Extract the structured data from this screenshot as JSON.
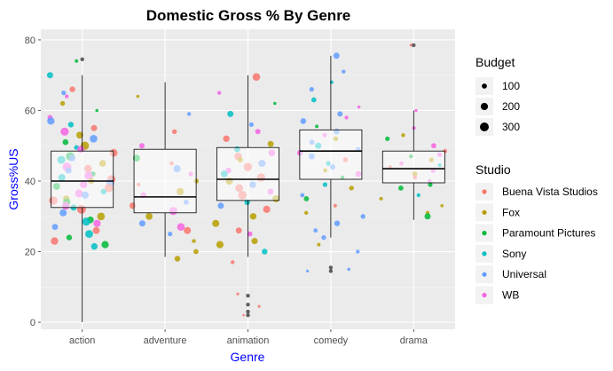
{
  "chart_data": {
    "type": "boxplot-jitter",
    "title": "Domestic Gross %  By Genre",
    "xlabel": "Genre",
    "ylabel": "Gross%US",
    "ylim": [
      -2,
      83
    ],
    "yticks": [
      0,
      20,
      40,
      60,
      80
    ],
    "categories": [
      "action",
      "adventure",
      "animation",
      "comedy",
      "drama"
    ],
    "boxes": [
      {
        "genre": "action",
        "q1": 32.5,
        "median": 40,
        "q3": 48.5,
        "lower": 0,
        "upper": 70
      },
      {
        "genre": "adventure",
        "q1": 31,
        "median": 35.5,
        "q3": 49,
        "lower": 18.5,
        "upper": 68
      },
      {
        "genre": "animation",
        "q1": 34.5,
        "median": 40.5,
        "q3": 49.5,
        "lower": 18.5,
        "upper": 70
      },
      {
        "genre": "comedy",
        "q1": 40.5,
        "median": 48.5,
        "q3": 54.5,
        "lower": 24,
        "upper": 75.5
      },
      {
        "genre": "drama",
        "q1": 39.5,
        "median": 43.5,
        "q3": 48.5,
        "lower": 29,
        "upper": 60
      }
    ],
    "outliers": [
      {
        "genre": "animation",
        "y": 7.5
      },
      {
        "genre": "animation",
        "y": 5
      },
      {
        "genre": "animation",
        "y": 3
      },
      {
        "genre": "animation",
        "y": 2
      },
      {
        "genre": "comedy",
        "y": 15.5
      },
      {
        "genre": "comedy",
        "y": 14.5
      },
      {
        "genre": "drama",
        "y": 78.5
      },
      {
        "genre": "action",
        "y": 74.5
      }
    ],
    "points_by_genre": {
      "action": [
        {
          "y": 74,
          "s": "Paramount Pictures",
          "b": 50
        },
        {
          "y": 70,
          "s": "Sony",
          "b": 150
        },
        {
          "y": 66,
          "s": "Buena Vista Studios",
          "b": 120
        },
        {
          "y": 65,
          "s": "Universal",
          "b": 80
        },
        {
          "y": 64,
          "s": "WB",
          "b": 60
        },
        {
          "y": 62,
          "s": "Fox",
          "b": 90
        },
        {
          "y": 60,
          "s": "Paramount Pictures",
          "b": 40
        },
        {
          "y": 58,
          "s": "WB",
          "b": 100
        },
        {
          "y": 57,
          "s": "Universal",
          "b": 200
        },
        {
          "y": 56,
          "s": "Sony",
          "b": 120
        },
        {
          "y": 55,
          "s": "Buena Vista Studios",
          "b": 150
        },
        {
          "y": 54,
          "s": "WB",
          "b": 250
        },
        {
          "y": 53,
          "s": "Fox",
          "b": 180
        },
        {
          "y": 52,
          "s": "Universal",
          "b": 220
        },
        {
          "y": 51,
          "s": "Paramount Pictures",
          "b": 130
        },
        {
          "y": 50,
          "s": "Fox",
          "b": 260
        },
        {
          "y": 49.5,
          "s": "Sony",
          "b": 90
        },
        {
          "y": 49,
          "s": "WB",
          "b": 200
        },
        {
          "y": 48,
          "s": "Buena Vista Studios",
          "b": 230
        },
        {
          "y": 47,
          "s": "Paramount Pictures",
          "b": 280
        },
        {
          "y": 46.5,
          "s": "Universal",
          "b": 160
        },
        {
          "y": 46,
          "s": "Sony",
          "b": 240
        },
        {
          "y": 45,
          "s": "Fox",
          "b": 170
        },
        {
          "y": 44,
          "s": "WB",
          "b": 290
        },
        {
          "y": 43.5,
          "s": "Buena Vista Studios",
          "b": 210
        },
        {
          "y": 43,
          "s": "Universal",
          "b": 150
        },
        {
          "y": 42,
          "s": "Paramount Pictures",
          "b": 100
        },
        {
          "y": 41.5,
          "s": "WB",
          "b": 270
        },
        {
          "y": 41,
          "s": "Sony",
          "b": 190
        },
        {
          "y": 40.5,
          "s": "Buena Vista Studios",
          "b": 250
        },
        {
          "y": 40,
          "s": "Fox",
          "b": 140
        },
        {
          "y": 39.5,
          "s": "Universal",
          "b": 230
        },
        {
          "y": 39,
          "s": "WB",
          "b": 200
        },
        {
          "y": 38.5,
          "s": "Paramount Pictures",
          "b": 180
        },
        {
          "y": 38,
          "s": "Buena Vista Studios",
          "b": 260
        },
        {
          "y": 37,
          "s": "Sony",
          "b": 120
        },
        {
          "y": 36.5,
          "s": "WB",
          "b": 240
        },
        {
          "y": 36,
          "s": "Universal",
          "b": 200
        },
        {
          "y": 35,
          "s": "Fox",
          "b": 160
        },
        {
          "y": 34.5,
          "s": "Buena Vista Studios",
          "b": 280
        },
        {
          "y": 34,
          "s": "Paramount Pictures",
          "b": 210
        },
        {
          "y": 33,
          "s": "WB",
          "b": 230
        },
        {
          "y": 32.5,
          "s": "Sony",
          "b": 150
        },
        {
          "y": 32,
          "s": "Buena Vista Studios",
          "b": 300
        },
        {
          "y": 31,
          "s": "Universal",
          "b": 190
        },
        {
          "y": 30,
          "s": "Fox",
          "b": 220
        },
        {
          "y": 29,
          "s": "Paramount Pictures",
          "b": 170
        },
        {
          "y": 28.5,
          "s": "Sony",
          "b": 250
        },
        {
          "y": 28,
          "s": "WB",
          "b": 200
        },
        {
          "y": 27,
          "s": "Universal",
          "b": 140
        },
        {
          "y": 26,
          "s": "Buena Vista Studios",
          "b": 180
        },
        {
          "y": 25,
          "s": "Sony",
          "b": 230
        },
        {
          "y": 24,
          "s": "Paramount Pictures",
          "b": 120
        },
        {
          "y": 23,
          "s": "Buena Vista Studios",
          "b": 210
        },
        {
          "y": 22,
          "s": "Paramount Pictures",
          "b": 200
        },
        {
          "y": 21.5,
          "s": "Sony",
          "b": 160
        }
      ],
      "adventure": [
        {
          "y": 64,
          "s": "Fox",
          "b": 40
        },
        {
          "y": 59,
          "s": "Universal",
          "b": 60
        },
        {
          "y": 54,
          "s": "Buena Vista Studios",
          "b": 90
        },
        {
          "y": 50,
          "s": "WB",
          "b": 110
        },
        {
          "y": 46.5,
          "s": "Paramount Pictures",
          "b": 180
        },
        {
          "y": 45,
          "s": "Buena Vista Studios",
          "b": 70
        },
        {
          "y": 43.5,
          "s": "Universal",
          "b": 200
        },
        {
          "y": 42,
          "s": "WB",
          "b": 80
        },
        {
          "y": 40,
          "s": "Fox",
          "b": 90
        },
        {
          "y": 39,
          "s": "Buena Vista Studios",
          "b": 60
        },
        {
          "y": 37,
          "s": "Fox",
          "b": 200
        },
        {
          "y": 36,
          "s": "WB",
          "b": 140
        },
        {
          "y": 34,
          "s": "Universal",
          "b": 100
        },
        {
          "y": 33,
          "s": "Buena Vista Studios",
          "b": 160
        },
        {
          "y": 31.5,
          "s": "WB",
          "b": 250
        },
        {
          "y": 30,
          "s": "Fox",
          "b": 180
        },
        {
          "y": 28,
          "s": "Universal",
          "b": 150
        },
        {
          "y": 27,
          "s": "WB",
          "b": 220
        },
        {
          "y": 26,
          "s": "Buena Vista Studios",
          "b": 190
        },
        {
          "y": 25,
          "s": "Universal",
          "b": 80
        },
        {
          "y": 23,
          "s": "Fox",
          "b": 60
        },
        {
          "y": 20,
          "s": "Fox",
          "b": 100
        },
        {
          "y": 18,
          "s": "Fox",
          "b": 120
        }
      ],
      "animation": [
        {
          "y": 69.5,
          "s": "Buena Vista Studios",
          "b": 220
        },
        {
          "y": 65,
          "s": "WB",
          "b": 60
        },
        {
          "y": 62,
          "s": "Paramount Pictures",
          "b": 40
        },
        {
          "y": 59,
          "s": "Sony",
          "b": 150
        },
        {
          "y": 56,
          "s": "Universal",
          "b": 80
        },
        {
          "y": 54,
          "s": "WB",
          "b": 110
        },
        {
          "y": 52,
          "s": "Buena Vista Studios",
          "b": 160
        },
        {
          "y": 50.5,
          "s": "Fox",
          "b": 140
        },
        {
          "y": 49,
          "s": "Sony",
          "b": 130
        },
        {
          "y": 48,
          "s": "WB",
          "b": 170
        },
        {
          "y": 47,
          "s": "Buena Vista Studios",
          "b": 210
        },
        {
          "y": 46,
          "s": "Fox",
          "b": 100
        },
        {
          "y": 45,
          "s": "Universal",
          "b": 190
        },
        {
          "y": 44,
          "s": "Buena Vista Studios",
          "b": 250
        },
        {
          "y": 43,
          "s": "WB",
          "b": 120
        },
        {
          "y": 42,
          "s": "Sony",
          "b": 180
        },
        {
          "y": 41,
          "s": "Buena Vista Studios",
          "b": 270
        },
        {
          "y": 40,
          "s": "Fox",
          "b": 200
        },
        {
          "y": 39,
          "s": "Universal",
          "b": 160
        },
        {
          "y": 38,
          "s": "Buena Vista Studios",
          "b": 230
        },
        {
          "y": 37,
          "s": "WB",
          "b": 140
        },
        {
          "y": 36,
          "s": "Buena Vista Studios",
          "b": 280
        },
        {
          "y": 35,
          "s": "Fox",
          "b": 180
        },
        {
          "y": 34,
          "s": "Sony",
          "b": 120
        },
        {
          "y": 33,
          "s": "Universal",
          "b": 150
        },
        {
          "y": 32,
          "s": "Buena Vista Studios",
          "b": 200
        },
        {
          "y": 30,
          "s": "Fox",
          "b": 160
        },
        {
          "y": 28,
          "s": "Fox",
          "b": 190
        },
        {
          "y": 26,
          "s": "Buena Vista Studios",
          "b": 140
        },
        {
          "y": 25,
          "s": "WB",
          "b": 100
        },
        {
          "y": 23,
          "s": "Fox",
          "b": 150
        },
        {
          "y": 22,
          "s": "Fox",
          "b": 200
        },
        {
          "y": 20,
          "s": "Sony",
          "b": 120
        },
        {
          "y": 17,
          "s": "Buena Vista Studios",
          "b": 60
        },
        {
          "y": 8,
          "s": "Buena Vista Studios",
          "b": 30
        },
        {
          "y": 4.5,
          "s": "Buena Vista Studios",
          "b": 30
        },
        {
          "y": 2,
          "s": "Buena Vista Studios",
          "b": 20
        }
      ],
      "comedy": [
        {
          "y": 75.5,
          "s": "Universal",
          "b": 150
        },
        {
          "y": 71,
          "s": "Universal",
          "b": 60
        },
        {
          "y": 68,
          "s": "Sony",
          "b": 50
        },
        {
          "y": 66,
          "s": "Universal",
          "b": 80
        },
        {
          "y": 63,
          "s": "Sony",
          "b": 100
        },
        {
          "y": 61,
          "s": "WB",
          "b": 40
        },
        {
          "y": 59,
          "s": "Universal",
          "b": 110
        },
        {
          "y": 58,
          "s": "WB",
          "b": 60
        },
        {
          "y": 57,
          "s": "Universal",
          "b": 130
        },
        {
          "y": 55.5,
          "s": "Paramount Pictures",
          "b": 50
        },
        {
          "y": 54,
          "s": "Universal",
          "b": 120
        },
        {
          "y": 53,
          "s": "WB",
          "b": 70
        },
        {
          "y": 52,
          "s": "Fox",
          "b": 90
        },
        {
          "y": 51,
          "s": "Universal",
          "b": 100
        },
        {
          "y": 50,
          "s": "Sony",
          "b": 150
        },
        {
          "y": 49,
          "s": "Universal",
          "b": 80
        },
        {
          "y": 48,
          "s": "WB",
          "b": 120
        },
        {
          "y": 47,
          "s": "Universal",
          "b": 140
        },
        {
          "y": 46,
          "s": "Buena Vista Studios",
          "b": 100
        },
        {
          "y": 45,
          "s": "Sony",
          "b": 90
        },
        {
          "y": 44,
          "s": "Universal",
          "b": 110
        },
        {
          "y": 43,
          "s": "Fox",
          "b": 70
        },
        {
          "y": 42,
          "s": "WB",
          "b": 130
        },
        {
          "y": 41,
          "s": "Paramount Pictures",
          "b": 60
        },
        {
          "y": 39,
          "s": "Sony",
          "b": 80
        },
        {
          "y": 38,
          "s": "Fox",
          "b": 90
        },
        {
          "y": 36,
          "s": "Universal",
          "b": 70
        },
        {
          "y": 35,
          "s": "Paramount Pictures",
          "b": 100
        },
        {
          "y": 33,
          "s": "Buena Vista Studios",
          "b": 50
        },
        {
          "y": 31,
          "s": "Fox",
          "b": 60
        },
        {
          "y": 30,
          "s": "Universal",
          "b": 90
        },
        {
          "y": 28,
          "s": "Universal",
          "b": 120
        },
        {
          "y": 26,
          "s": "Universal",
          "b": 70
        },
        {
          "y": 24,
          "s": "Universal",
          "b": 80
        },
        {
          "y": 22,
          "s": "Fox",
          "b": 50
        },
        {
          "y": 20,
          "s": "Universal",
          "b": 60
        },
        {
          "y": 15,
          "s": "Universal",
          "b": 40
        },
        {
          "y": 14.5,
          "s": "Universal",
          "b": 30
        }
      ],
      "drama": [
        {
          "y": 78.5,
          "s": "Buena Vista Studios",
          "b": 30
        },
        {
          "y": 60,
          "s": "WB",
          "b": 40
        },
        {
          "y": 55,
          "s": "WB",
          "b": 50
        },
        {
          "y": 53,
          "s": "Fox",
          "b": 60
        },
        {
          "y": 52,
          "s": "Paramount Pictures",
          "b": 80
        },
        {
          "y": 50,
          "s": "WB",
          "b": 100
        },
        {
          "y": 48.5,
          "s": "Buena Vista Studios",
          "b": 70
        },
        {
          "y": 47.5,
          "s": "WB",
          "b": 90
        },
        {
          "y": 47,
          "s": "Paramount Pictures",
          "b": 60
        },
        {
          "y": 46,
          "s": "Fox",
          "b": 80
        },
        {
          "y": 45,
          "s": "WB",
          "b": 70
        },
        {
          "y": 44.5,
          "s": "Sony",
          "b": 60
        },
        {
          "y": 44,
          "s": "Buena Vista Studios",
          "b": 50
        },
        {
          "y": 43,
          "s": "WB",
          "b": 90
        },
        {
          "y": 42,
          "s": "Fox",
          "b": 100
        },
        {
          "y": 41,
          "s": "Buena Vista Studios",
          "b": 70
        },
        {
          "y": 40,
          "s": "WB",
          "b": 60
        },
        {
          "y": 39,
          "s": "Paramount Pictures",
          "b": 80
        },
        {
          "y": 38,
          "s": "Paramount Pictures",
          "b": 100
        },
        {
          "y": 36,
          "s": "Sony",
          "b": 60
        },
        {
          "y": 35,
          "s": "Fox",
          "b": 50
        },
        {
          "y": 33,
          "s": "Fox",
          "b": 40
        },
        {
          "y": 31,
          "s": "Fox",
          "b": 60
        },
        {
          "y": 30,
          "s": "Paramount Pictures",
          "b": 150
        }
      ]
    },
    "studios": [
      {
        "name": "Buena Vista Studios",
        "color": "#F8766D"
      },
      {
        "name": "Fox",
        "color": "#B79F00"
      },
      {
        "name": "Paramount Pictures",
        "color": "#00BA38"
      },
      {
        "name": "Sony",
        "color": "#00BFC4"
      },
      {
        "name": "Universal",
        "color": "#619CFF"
      },
      {
        "name": "WB",
        "color": "#F564E3"
      }
    ],
    "legend": {
      "budget_title": "Budget",
      "budget_sizes": [
        {
          "label": "100",
          "value": 100
        },
        {
          "label": "200",
          "value": 200
        },
        {
          "label": "300",
          "value": 300
        }
      ],
      "studio_title": "Studio"
    }
  }
}
